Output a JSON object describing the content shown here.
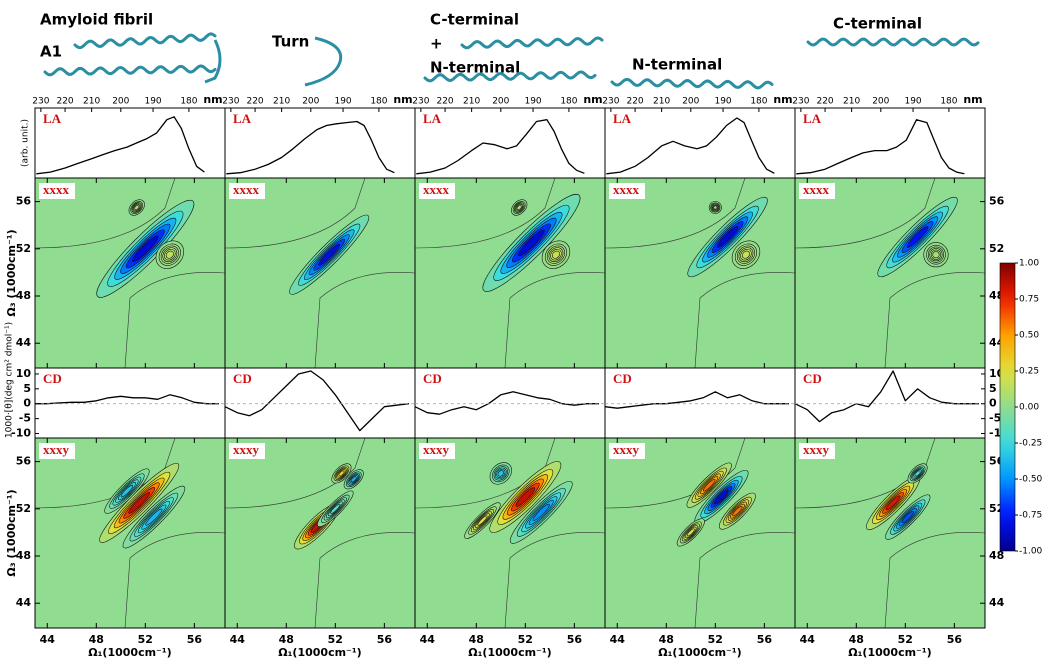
{
  "header": {
    "labels": [
      "Amyloid fibril",
      "A1",
      "Turn",
      "C-terminal",
      "+",
      "N-terminal",
      "N-terminal",
      "C-terminal"
    ]
  },
  "la": {
    "label": "LA",
    "ylabel": "(arb. unit.)",
    "xunit": "nm",
    "xticks": [
      230,
      220,
      210,
      200,
      190,
      180
    ],
    "ylim": [
      0,
      1.1
    ],
    "x": [
      232,
      226,
      220,
      215,
      210,
      206,
      202,
      198,
      195,
      192,
      189,
      186,
      184,
      182,
      180,
      178,
      176
    ],
    "panels": [
      [
        0.02,
        0.05,
        0.12,
        0.2,
        0.28,
        0.35,
        0.42,
        0.48,
        0.55,
        0.62,
        0.72,
        0.95,
        1.0,
        0.8,
        0.45,
        0.15,
        0.05
      ],
      [
        0.02,
        0.04,
        0.1,
        0.18,
        0.3,
        0.45,
        0.62,
        0.78,
        0.85,
        0.88,
        0.9,
        0.92,
        0.85,
        0.6,
        0.3,
        0.1,
        0.04
      ],
      [
        0.02,
        0.05,
        0.12,
        0.25,
        0.42,
        0.55,
        0.52,
        0.45,
        0.5,
        0.7,
        0.92,
        0.95,
        0.75,
        0.45,
        0.2,
        0.08,
        0.03
      ],
      [
        0.02,
        0.05,
        0.15,
        0.3,
        0.5,
        0.58,
        0.5,
        0.45,
        0.5,
        0.65,
        0.85,
        0.98,
        0.9,
        0.6,
        0.3,
        0.1,
        0.03
      ],
      [
        0.02,
        0.04,
        0.1,
        0.2,
        0.3,
        0.38,
        0.42,
        0.42,
        0.48,
        0.6,
        0.95,
        0.9,
        0.6,
        0.3,
        0.12,
        0.05,
        0.02
      ]
    ]
  },
  "cd": {
    "label": "CD",
    "ylabel": "1000·[θ](deg cm² dmol⁻¹)",
    "ylim": [
      -11.5,
      12
    ],
    "yticks": [
      10,
      5,
      0,
      -5,
      -10
    ],
    "x": [
      43,
      44,
      45,
      46,
      47,
      48,
      49,
      50,
      51,
      52,
      53,
      54,
      55,
      56,
      57,
      58
    ],
    "panels": [
      [
        0,
        0,
        0.3,
        0.5,
        0.5,
        1,
        2,
        2.5,
        2,
        2,
        1.5,
        3,
        2,
        0.5,
        0,
        0
      ],
      [
        -1,
        -3,
        -4,
        -2,
        2,
        6,
        10,
        11,
        8,
        3,
        -3,
        -9,
        -5,
        -1,
        -0.5,
        0
      ],
      [
        -1,
        -3,
        -3.5,
        -2,
        -1,
        -2,
        0,
        3,
        4,
        3,
        2,
        1.5,
        0,
        -0.5,
        0,
        0
      ],
      [
        -1,
        -1.5,
        -1,
        -0.5,
        0,
        0,
        0.5,
        1,
        2,
        4,
        2,
        3,
        1,
        0,
        0,
        0
      ],
      [
        0,
        -2,
        -6,
        -3,
        -2,
        0,
        -1,
        4,
        11,
        1,
        5,
        2,
        0.5,
        0,
        0,
        0
      ]
    ]
  },
  "heatmap_axes": {
    "xlim": [
      43,
      58.5
    ],
    "xticks": [
      44,
      48,
      52,
      56
    ],
    "xlabel": "Ω₁(1000cm⁻¹)",
    "ylim": [
      41.9,
      58
    ],
    "yticks": [
      44,
      48,
      52,
      56
    ],
    "ylabel": "Ω₃ (1000cm⁻¹)"
  },
  "xxxx": {
    "label": "xxxx",
    "panels": [
      [
        {
          "x": 52,
          "y": 52,
          "value": -1,
          "length": 11,
          "width": 2.2
        },
        {
          "x": 51.3,
          "y": 55.5,
          "value": 0.12,
          "length": 1.5,
          "width": 1
        },
        {
          "x": 54,
          "y": 51.5,
          "value": 0.15,
          "length": 2.5,
          "width": 2
        }
      ],
      [
        {
          "x": 51.5,
          "y": 51.5,
          "value": -0.95,
          "length": 9,
          "width": 1.6
        }
      ],
      [
        {
          "x": 52.5,
          "y": 52.5,
          "value": -1,
          "length": 11,
          "width": 2.2
        },
        {
          "x": 51.5,
          "y": 55.5,
          "value": 0.12,
          "length": 1.5,
          "width": 1
        },
        {
          "x": 54.5,
          "y": 51.5,
          "value": 0.2,
          "length": 2.5,
          "width": 2
        }
      ],
      [
        {
          "x": 53,
          "y": 53,
          "value": -1,
          "length": 9,
          "width": 1.8
        },
        {
          "x": 54.5,
          "y": 51.5,
          "value": 0.18,
          "length": 2.5,
          "width": 2
        },
        {
          "x": 52,
          "y": 55.5,
          "value": 0.1,
          "length": 1,
          "width": 1
        }
      ],
      [
        {
          "x": 53,
          "y": 53,
          "value": -0.9,
          "length": 9,
          "width": 1.8
        },
        {
          "x": 54.5,
          "y": 51.5,
          "value": 0.08,
          "length": 2,
          "width": 2
        }
      ]
    ]
  },
  "xxxy": {
    "label": "xxxy",
    "panels": [
      [
        {
          "x": 51.5,
          "y": 52.5,
          "value": 1,
          "length": 9,
          "width": 1.6
        },
        {
          "x": 52.7,
          "y": 51.3,
          "value": -0.45,
          "length": 7,
          "width": 1.4
        },
        {
          "x": 50.5,
          "y": 53.5,
          "value": -0.4,
          "length": 5,
          "width": 1.2
        }
      ],
      [
        {
          "x": 50.5,
          "y": 50.5,
          "value": 1,
          "length": 5,
          "width": 1.4
        },
        {
          "x": 52,
          "y": 52,
          "value": -0.2,
          "length": 4,
          "width": 1
        },
        {
          "x": 53.5,
          "y": 54.5,
          "value": -0.5,
          "length": 2,
          "width": 1
        },
        {
          "x": 52.5,
          "y": 55,
          "value": 0.4,
          "length": 2,
          "width": 1
        }
      ],
      [
        {
          "x": 52,
          "y": 53,
          "value": 1,
          "length": 8,
          "width": 1.8
        },
        {
          "x": 53.3,
          "y": 51.7,
          "value": -0.6,
          "length": 7,
          "width": 1.5
        },
        {
          "x": 50,
          "y": 55,
          "value": -0.4,
          "length": 2,
          "width": 1.5
        },
        {
          "x": 48.5,
          "y": 51,
          "value": 0.3,
          "length": 4,
          "width": 1
        }
      ],
      [
        {
          "x": 52.5,
          "y": 53,
          "value": -1,
          "length": 6,
          "width": 1.4
        },
        {
          "x": 51.5,
          "y": 54,
          "value": 0.7,
          "length": 5,
          "width": 1.2
        },
        {
          "x": 53.8,
          "y": 51.8,
          "value": 0.7,
          "length": 4,
          "width": 1.2
        },
        {
          "x": 50,
          "y": 50,
          "value": 0.25,
          "length": 3,
          "width": 1
        }
      ],
      [
        {
          "x": 51,
          "y": 52.5,
          "value": 0.95,
          "length": 6,
          "width": 1.4
        },
        {
          "x": 52.2,
          "y": 51.3,
          "value": -0.75,
          "length": 5,
          "width": 1.2
        },
        {
          "x": 53,
          "y": 55,
          "value": -0.3,
          "length": 2,
          "width": 1
        }
      ]
    ]
  },
  "colorbar": {
    "ticks": [
      {
        "value": 1,
        "label": "1.00"
      },
      {
        "value": 0.75,
        "label": "0.75"
      },
      {
        "value": 0.5,
        "label": "0.50"
      },
      {
        "value": 0.25,
        "label": "0.25"
      },
      {
        "value": 0,
        "label": "0.00"
      },
      {
        "value": -0.25,
        "label": "-0.25"
      },
      {
        "value": -0.5,
        "label": "-0.50"
      },
      {
        "value": -0.75,
        "label": "-0.75"
      },
      {
        "value": -1,
        "label": "-1.00"
      }
    ]
  }
}
